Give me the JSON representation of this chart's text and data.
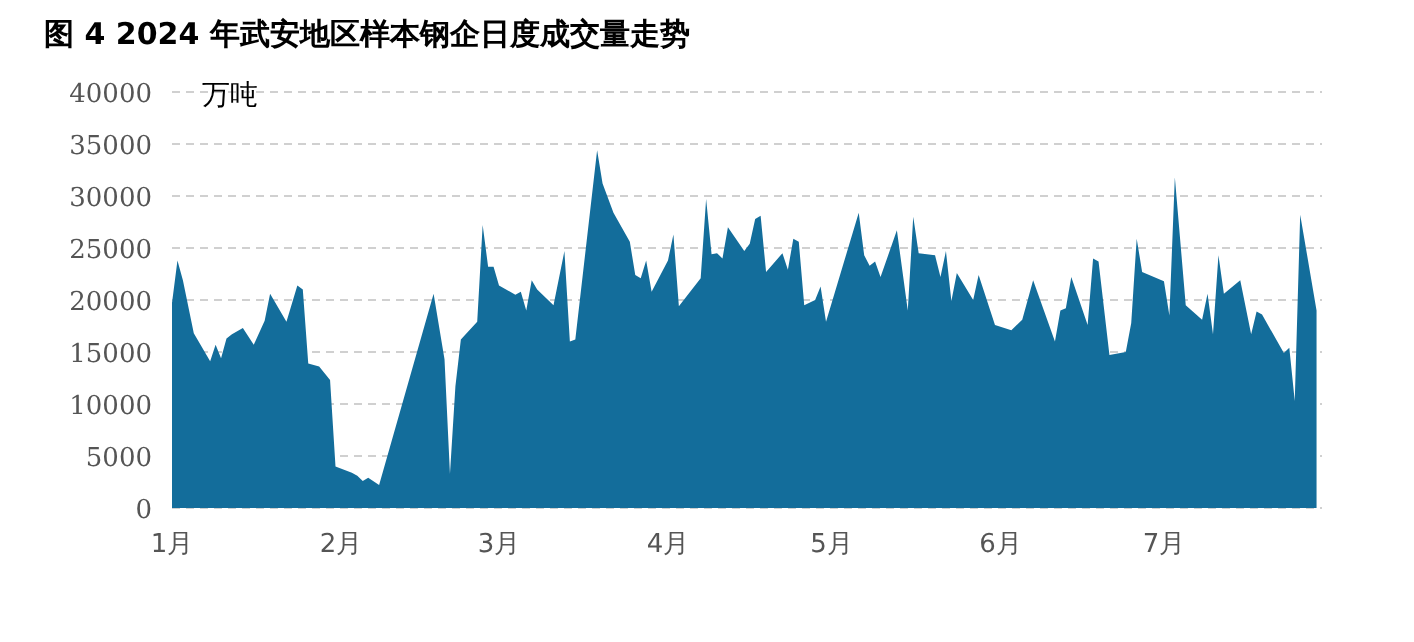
{
  "chart_data": {
    "type": "area",
    "title": "图 4 2024 年武安地区样本钢企日度成交量走势",
    "ylabel": "万吨",
    "color": "#136d9b",
    "grid": "y",
    "xlim": [
      "2024-01-01",
      "2024-07-30"
    ],
    "ylim": [
      0,
      40000
    ],
    "yticks": [
      0,
      5000,
      10000,
      15000,
      20000,
      25000,
      30000,
      35000,
      40000
    ],
    "xticks": [
      {
        "value": "2024-01-01",
        "label": "1月"
      },
      {
        "value": "2024-02-01",
        "label": "2月"
      },
      {
        "value": "2024-03-01",
        "label": "3月"
      },
      {
        "value": "2024-04-01",
        "label": "4月"
      },
      {
        "value": "2024-05-01",
        "label": "5月"
      },
      {
        "value": "2024-06-01",
        "label": "6月"
      },
      {
        "value": "2024-07-01",
        "label": "7月"
      }
    ],
    "x": [
      "2024-01-01",
      "2024-01-02",
      "2024-01-03",
      "2024-01-05",
      "2024-01-08",
      "2024-01-09",
      "2024-01-10",
      "2024-01-11",
      "2024-01-12",
      "2024-01-14",
      "2024-01-16",
      "2024-01-18",
      "2024-01-19",
      "2024-01-22",
      "2024-01-24",
      "2024-01-25",
      "2024-01-26",
      "2024-01-28",
      "2024-01-30",
      "2024-01-31",
      "2024-02-03",
      "2024-02-04",
      "2024-02-05",
      "2024-02-06",
      "2024-02-08",
      "2024-02-18",
      "2024-02-20",
      "2024-02-21",
      "2024-02-22",
      "2024-02-23",
      "2024-02-26",
      "2024-02-27",
      "2024-02-28",
      "2024-02-29",
      "2024-03-01",
      "2024-03-04",
      "2024-03-05",
      "2024-03-06",
      "2024-03-07",
      "2024-03-08",
      "2024-03-11",
      "2024-03-13",
      "2024-03-14",
      "2024-03-15",
      "2024-03-19",
      "2024-03-20",
      "2024-03-22",
      "2024-03-25",
      "2024-03-26",
      "2024-03-27",
      "2024-03-28",
      "2024-03-29",
      "2024-04-01",
      "2024-04-02",
      "2024-04-03",
      "2024-04-07",
      "2024-04-08",
      "2024-04-09",
      "2024-04-10",
      "2024-04-11",
      "2024-04-12",
      "2024-04-15",
      "2024-04-16",
      "2024-04-17",
      "2024-04-18",
      "2024-04-19",
      "2024-04-22",
      "2024-04-23",
      "2024-04-24",
      "2024-04-25",
      "2024-04-26",
      "2024-04-28",
      "2024-04-29",
      "2024-04-30",
      "2024-05-06",
      "2024-05-07",
      "2024-05-08",
      "2024-05-09",
      "2024-05-10",
      "2024-05-13",
      "2024-05-15",
      "2024-05-16",
      "2024-05-17",
      "2024-05-20",
      "2024-05-21",
      "2024-05-22",
      "2024-05-23",
      "2024-05-24",
      "2024-05-27",
      "2024-05-28",
      "2024-05-31",
      "2024-06-03",
      "2024-06-05",
      "2024-06-07",
      "2024-06-11",
      "2024-06-12",
      "2024-06-13",
      "2024-06-14",
      "2024-06-17",
      "2024-06-18",
      "2024-06-19",
      "2024-06-21",
      "2024-06-24",
      "2024-06-25",
      "2024-06-26",
      "2024-06-27",
      "2024-07-01",
      "2024-07-02",
      "2024-07-03",
      "2024-07-05",
      "2024-07-08",
      "2024-07-09",
      "2024-07-10",
      "2024-07-11",
      "2024-07-12",
      "2024-07-15",
      "2024-07-17",
      "2024-07-18",
      "2024-07-19",
      "2024-07-23",
      "2024-07-24",
      "2024-07-25",
      "2024-07-26",
      "2024-07-29"
    ],
    "values": [
      19700,
      23800,
      21900,
      16800,
      14100,
      15700,
      14400,
      16300,
      16700,
      17300,
      15700,
      18000,
      20600,
      17900,
      21400,
      21000,
      13900,
      13600,
      12300,
      4000,
      3400,
      3100,
      2600,
      2900,
      2200,
      20600,
      14300,
      3300,
      11700,
      16200,
      17900,
      27200,
      23200,
      23200,
      21400,
      20500,
      20800,
      19000,
      21900,
      21000,
      19500,
      24700,
      16000,
      16200,
      34400,
      31200,
      28400,
      25600,
      22400,
      22100,
      23800,
      20800,
      23800,
      26300,
      19400,
      22100,
      29700,
      24400,
      24500,
      24000,
      27000,
      24700,
      25400,
      27800,
      28100,
      22700,
      24500,
      22900,
      25900,
      25600,
      19500,
      20000,
      21300,
      17900,
      28400,
      24300,
      23300,
      23700,
      22200,
      26700,
      19000,
      28000,
      24500,
      24300,
      22200,
      24700,
      19900,
      22600,
      20000,
      22400,
      17600,
      17100,
      18100,
      21900,
      16000,
      19000,
      19200,
      22200,
      17600,
      24000,
      23700,
      14700,
      15000,
      17800,
      25900,
      22700,
      21800,
      18500,
      31800,
      19500,
      18100,
      20600,
      16700,
      24300,
      20600,
      21900,
      16700,
      18900,
      18600,
      14900,
      15400,
      10300,
      28200,
      19000
    ]
  }
}
